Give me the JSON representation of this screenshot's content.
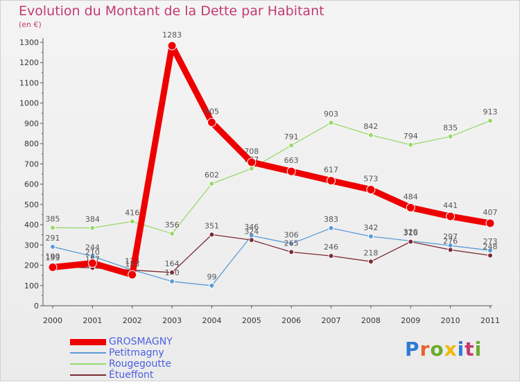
{
  "header": {
    "title": "Evolution du Montant de la Dette par Habitant",
    "subtitle": "(en €)"
  },
  "logo": {
    "text": "Proxiti",
    "colors": [
      "#2e7bd6",
      "#e8612c",
      "#6aab2e",
      "#f2b705",
      "#2e7bd6",
      "#c23a6e",
      "#6aab2e"
    ]
  },
  "chart_data": {
    "type": "line",
    "title": "Evolution du Montant de la Dette par Habitant",
    "subtitle": "(en €)",
    "x": [
      "2000",
      "2001",
      "2002",
      "2003",
      "2004",
      "2005",
      "2006",
      "2007",
      "2008",
      "2009",
      "2010",
      "2011"
    ],
    "ylim": [
      0,
      1300
    ],
    "yticks": [
      0,
      100,
      200,
      300,
      400,
      500,
      600,
      700,
      800,
      900,
      1000,
      1100,
      1200,
      1300
    ],
    "grid": false,
    "legend_position": "bottom-left",
    "series": [
      {
        "name": "Petitmagny",
        "color": "#5b9bd5",
        "width": 1.3,
        "values": [
          291,
          244,
          177,
          120,
          99,
          346,
          306,
          383,
          342,
          320,
          297,
          273
        ],
        "labels": [
          "291",
          "244",
          "177",
          "120",
          "99",
          "346",
          "306",
          "383",
          "342",
          "320",
          "297",
          "273"
        ]
      },
      {
        "name": "Rougegoutte",
        "color": "#99d869",
        "width": 1.3,
        "values": [
          385,
          384,
          416,
          356,
          602,
          677,
          791,
          903,
          842,
          794,
          835,
          913
        ],
        "labels": [
          "385",
          "384",
          "416",
          "356",
          "602",
          "677",
          "791",
          "903",
          "842",
          "794",
          "835",
          "913"
        ]
      },
      {
        "name": "Étueffont",
        "color": "#7b2a35",
        "width": 1.3,
        "values": [
          193,
          187,
          176,
          164,
          351,
          324,
          265,
          246,
          218,
          316,
          276,
          248
        ],
        "labels": [
          "193",
          "187",
          "176",
          "164",
          "351",
          "324",
          "265",
          "246",
          "218",
          "316",
          "276",
          "248"
        ]
      },
      {
        "name": "GROSMAGNY",
        "color": "#ee0000",
        "width": 9,
        "values": [
          190,
          210,
          153,
          1283,
          905,
          708,
          663,
          617,
          573,
          484,
          441,
          407
        ],
        "labels": [
          "190",
          "210",
          "153",
          "1283",
          "905",
          "708",
          "663",
          "617",
          "573",
          "484",
          "441",
          "407"
        ]
      }
    ]
  }
}
